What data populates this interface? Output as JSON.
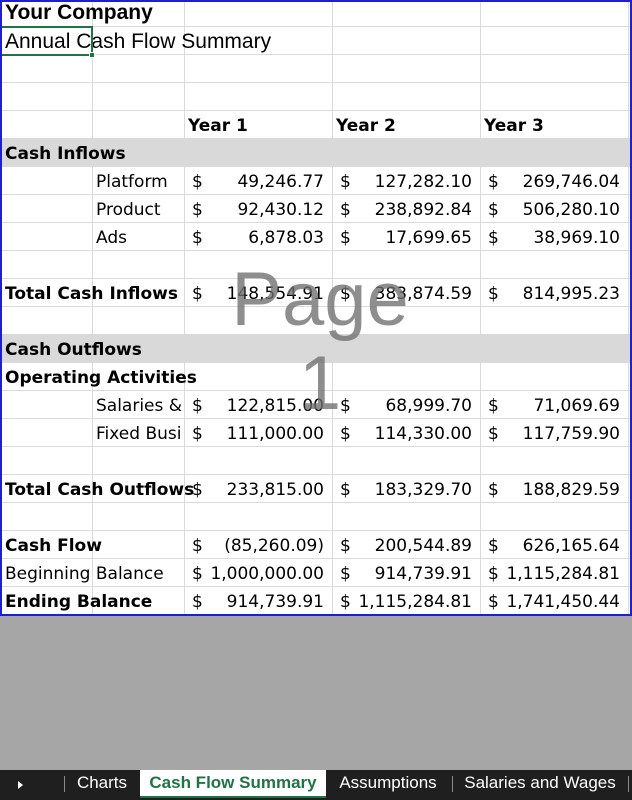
{
  "sheet": {
    "company": "Your Company",
    "title": "Annual Cash Flow Summary",
    "years": [
      "Year 1",
      "Year 2",
      "Year 3"
    ],
    "currency_symbol": "$",
    "watermark": "Page 1",
    "sections": {
      "inflows": {
        "header": "Cash Inflows",
        "rows": [
          {
            "label": "Platform",
            "values": [
              "49,246.77",
              "127,282.10",
              "269,746.04"
            ]
          },
          {
            "label": "Product",
            "values": [
              "92,430.12",
              "238,892.84",
              "506,280.10"
            ]
          },
          {
            "label": "Ads",
            "values": [
              "6,878.03",
              "17,699.65",
              "38,969.10"
            ]
          }
        ],
        "total_label": "Total Cash Inflows",
        "total_values": [
          "148,554.91",
          "383,874.59",
          "814,995.23"
        ]
      },
      "outflows": {
        "header": "Cash Outflows",
        "subheader": "Operating Activities",
        "rows": [
          {
            "label": "Salaries &",
            "values": [
              "122,815.00",
              "68,999.70",
              "71,069.69"
            ]
          },
          {
            "label": "Fixed Busi",
            "values": [
              "111,000.00",
              "114,330.00",
              "117,759.90"
            ]
          }
        ],
        "total_label": "Total Cash Outflows",
        "total_values": [
          "233,815.00",
          "183,329.70",
          "188,829.59"
        ]
      },
      "summary": {
        "cash_flow_label": "Cash Flow",
        "cash_flow_values": [
          "(85,260.09)",
          "200,544.89",
          "626,165.64"
        ],
        "beginning_label": "Beginning Balance",
        "beginning_values": [
          "1,000,000.00",
          "914,739.91",
          "1,115,284.81"
        ],
        "ending_label": "Ending Balance",
        "ending_values": [
          "914,739.91",
          "1,115,284.81",
          "1,741,450.44"
        ]
      }
    }
  },
  "tabs": {
    "items": [
      "Charts",
      "Cash Flow Summary",
      "Assumptions",
      "Salaries and Wages"
    ],
    "active": "Cash Flow Summary"
  },
  "colors": {
    "section_band": "#d9d9d9",
    "print_border": "#1f1fcf",
    "active_tab": "#217346",
    "tab_bar": "#1f1f1f",
    "background": "#a6a6a6"
  },
  "icons": {
    "nav": "play-arrow-icon"
  }
}
